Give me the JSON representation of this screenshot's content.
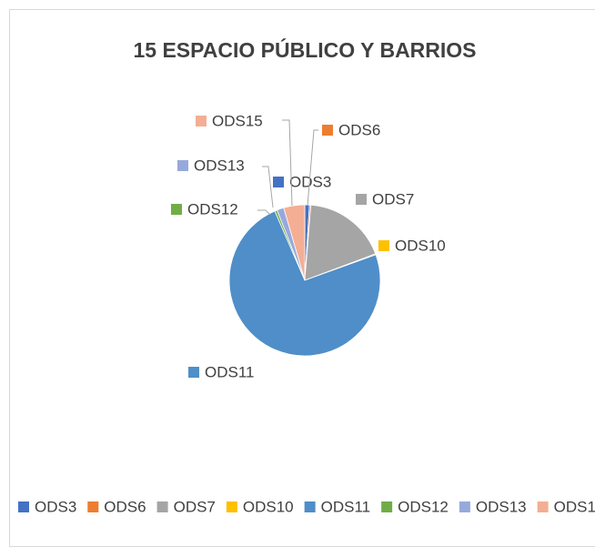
{
  "chart_data": {
    "type": "pie",
    "title": "15 ESPACIO PÚBLICO Y BARRIOS",
    "categories": [
      "ODS3",
      "ODS6",
      "ODS7",
      "ODS10",
      "ODS11",
      "ODS12",
      "ODS13",
      "ODS15"
    ],
    "values": [
      1,
      0.3,
      18,
      0.2,
      74,
      0.5,
      1.5,
      4.5
    ],
    "colors": [
      "#4472c4",
      "#ed7d31",
      "#a5a5a5",
      "#ffc000",
      "#4f8ec8",
      "#70ad47",
      "#97a9dc",
      "#f4ae94"
    ],
    "legend": "bottom"
  }
}
